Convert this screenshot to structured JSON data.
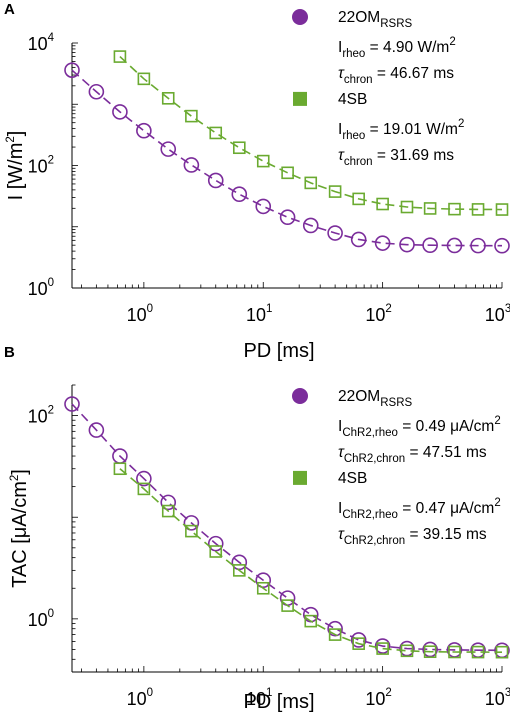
{
  "chart_data": [
    {
      "panel": "A",
      "type": "line",
      "xscale": "log",
      "yscale": "log",
      "xlabel": "PD [ms]",
      "ylabel": "I [W/m²]",
      "ylabel_parts": {
        "main": "I [W/m",
        "sup": "2",
        "end": "]"
      },
      "xlim": [
        0.25,
        1000
      ],
      "ylim": [
        1,
        10000
      ],
      "xticks": [
        1,
        10,
        100,
        1000
      ],
      "xtick_labels": [
        {
          "base": "10",
          "exp": "0"
        },
        {
          "base": "10",
          "exp": "1"
        },
        {
          "base": "10",
          "exp": "2"
        },
        {
          "base": "10",
          "exp": "3"
        }
      ],
      "yticks": [
        1,
        100,
        10000
      ],
      "ytick_labels": [
        {
          "base": "10",
          "exp": "0"
        },
        {
          "base": "10",
          "exp": "2"
        },
        {
          "base": "10",
          "exp": "4"
        }
      ],
      "grid": false,
      "legend_position": "top-right",
      "series": [
        {
          "name": "22OM",
          "name_sub": "RSRS",
          "color": "#7B2D9B",
          "marker": "circle",
          "x": [
            0.25,
            0.4,
            0.63,
            1,
            1.6,
            2.5,
            4,
            6.3,
            10,
            16,
            25,
            40,
            63,
            100,
            160,
            250,
            400,
            630,
            1000
          ],
          "y": [
            3600,
            1600,
            750,
            370,
            185,
            102,
            57,
            34,
            21.5,
            14.3,
            10.5,
            7.9,
            6.2,
            5.4,
            5.1,
            5.0,
            4.95,
            4.92,
            4.9
          ],
          "params": [
            {
              "sym": "I",
              "sub": "rheo",
              "text": " =  4.90 W/m",
              "sup": "2"
            },
            {
              "sym": "τ",
              "sub": "chron",
              "text": " = 46.67 ms",
              "sup": ""
            }
          ]
        },
        {
          "name": "4SB",
          "color": "#6AAA30",
          "marker": "square",
          "x": [
            0.63,
            1,
            1.6,
            2.5,
            4,
            6.3,
            10,
            16,
            25,
            40,
            63,
            100,
            160,
            250,
            400,
            630,
            1000
          ],
          "y": [
            6000,
            2600,
            1250,
            640,
            340,
            195,
            118,
            76,
            52,
            37.5,
            28.5,
            23.5,
            21,
            19.9,
            19.4,
            19.2,
            19.1
          ],
          "params": [
            {
              "sym": "I",
              "sub": "rheo",
              "text": " = 19.01 W/m",
              "sup": "2"
            },
            {
              "sym": "τ",
              "sub": "chron",
              "text": " = 31.69 ms",
              "sup": ""
            }
          ]
        }
      ]
    },
    {
      "panel": "B",
      "type": "line",
      "xscale": "log",
      "yscale": "log",
      "xlabel": "PD [ms]",
      "ylabel": "TAC [μA/cm²]",
      "ylabel_parts": {
        "main": "TAC [μA/cm",
        "sup": "2",
        "end": "]"
      },
      "xlim": [
        0.25,
        1000
      ],
      "ylim": [
        0.3,
        200
      ],
      "xticks": [
        1,
        10,
        100,
        1000
      ],
      "xtick_labels": [
        {
          "base": "10",
          "exp": "0"
        },
        {
          "base": "10",
          "exp": "1"
        },
        {
          "base": "10",
          "exp": "2"
        },
        {
          "base": "10",
          "exp": "3"
        }
      ],
      "yticks": [
        1,
        100
      ],
      "ytick_labels": [
        {
          "base": "10",
          "exp": "0"
        },
        {
          "base": "10",
          "exp": "2"
        }
      ],
      "grid": false,
      "legend_position": "top-right",
      "series": [
        {
          "name": "22OM",
          "name_sub": "RSRS",
          "color": "#7B2D9B",
          "marker": "circle",
          "x": [
            0.25,
            0.4,
            0.63,
            1,
            1.6,
            2.5,
            4,
            6.3,
            10,
            16,
            25,
            40,
            63,
            100,
            160,
            250,
            400,
            630,
            1000
          ],
          "y": [
            130,
            72,
            40,
            24,
            14,
            8.8,
            5.5,
            3.6,
            2.4,
            1.6,
            1.1,
            0.8,
            0.62,
            0.54,
            0.51,
            0.5,
            0.495,
            0.492,
            0.49
          ],
          "params": [
            {
              "sym": "I",
              "sub": "ChR2,rheo",
              "text": " =  0.49 μA/cm",
              "sup": "2"
            },
            {
              "sym": "τ",
              "sub": "ChR2,chron",
              "text": " = 47.51 ms",
              "sup": ""
            }
          ]
        },
        {
          "name": "4SB",
          "color": "#6AAA30",
          "marker": "square",
          "x": [
            0.63,
            1,
            1.6,
            2.5,
            4,
            6.3,
            10,
            16,
            25,
            40,
            63,
            100,
            160,
            250,
            400,
            630,
            1000
          ],
          "y": [
            30,
            19,
            11.5,
            7.3,
            4.6,
            3.0,
            2.0,
            1.35,
            0.95,
            0.7,
            0.57,
            0.51,
            0.485,
            0.475,
            0.472,
            0.471,
            0.47
          ],
          "params": [
            {
              "sym": "I",
              "sub": "ChR2,rheo",
              "text": " =  0.47 μA/cm",
              "sup": "2"
            },
            {
              "sym": "τ",
              "sub": "ChR2,chron",
              "text": " = 39.15 ms",
              "sup": ""
            }
          ]
        }
      ]
    }
  ]
}
